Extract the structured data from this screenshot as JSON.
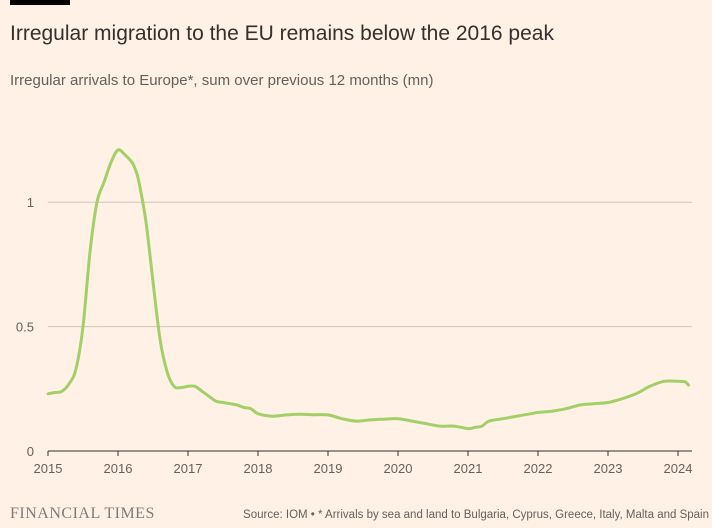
{
  "header": {
    "title": "Irregular migration to the EU remains below the 2016 peak",
    "subtitle": "Irregular arrivals to Europe*, sum over previous 12 months (mn)"
  },
  "footer": {
    "brand": "FINANCIAL TIMES",
    "source": "Source: IOM • * Arrivals by sea and land to Bulgaria, Cyprus, Greece, Italy, Malta and Spain"
  },
  "colors": {
    "background": "#FFF1E5",
    "line": "#A2CF68",
    "grid": "#CEC6B9",
    "axis": "#33302E"
  },
  "chart_data": {
    "type": "line",
    "title": "Irregular migration to the EU remains below the 2016 peak",
    "subtitle": "Irregular arrivals to Europe*, sum over previous 12 months (mn)",
    "xlabel": "",
    "ylabel": "",
    "xlim": [
      2015.0,
      2024.2
    ],
    "ylim": [
      0,
      1.25
    ],
    "grid": true,
    "x_ticks": [
      2015,
      2016,
      2017,
      2018,
      2019,
      2020,
      2021,
      2022,
      2023,
      2024
    ],
    "x_tick_labels": [
      "2015",
      "2016",
      "2017",
      "2018",
      "2019",
      "2020",
      "2021",
      "2022",
      "2023",
      "2024"
    ],
    "y_ticks": [
      0,
      0.5,
      1
    ],
    "y_tick_labels": [
      "0",
      "0.5",
      "1"
    ],
    "series": [
      {
        "x": [
          2015.0,
          2015.1,
          2015.2,
          2015.3,
          2015.4,
          2015.5,
          2015.6,
          2015.7,
          2015.8,
          2015.9,
          2016.0,
          2016.1,
          2016.2,
          2016.25,
          2016.3,
          2016.4,
          2016.5,
          2016.6,
          2016.7,
          2016.8,
          2016.9,
          2017.0,
          2017.1,
          2017.2,
          2017.3,
          2017.4,
          2017.5,
          2017.6,
          2017.7,
          2017.8,
          2017.9,
          2018.0,
          2018.2,
          2018.4,
          2018.6,
          2018.8,
          2019.0,
          2019.2,
          2019.4,
          2019.6,
          2019.8,
          2020.0,
          2020.2,
          2020.4,
          2020.6,
          2020.8,
          2021.0,
          2021.1,
          2021.2,
          2021.3,
          2021.5,
          2021.7,
          2021.9,
          2022.0,
          2022.2,
          2022.4,
          2022.6,
          2022.8,
          2023.0,
          2023.2,
          2023.4,
          2023.6,
          2023.8,
          2024.0,
          2024.1,
          2024.15
        ],
        "values": [
          0.23,
          0.235,
          0.24,
          0.27,
          0.33,
          0.5,
          0.8,
          1.0,
          1.08,
          1.16,
          1.21,
          1.19,
          1.16,
          1.13,
          1.08,
          0.92,
          0.68,
          0.45,
          0.32,
          0.26,
          0.255,
          0.26,
          0.26,
          0.24,
          0.22,
          0.2,
          0.195,
          0.19,
          0.185,
          0.175,
          0.17,
          0.15,
          0.14,
          0.145,
          0.148,
          0.146,
          0.145,
          0.13,
          0.12,
          0.125,
          0.128,
          0.13,
          0.12,
          0.11,
          0.1,
          0.1,
          0.09,
          0.095,
          0.1,
          0.12,
          0.13,
          0.14,
          0.15,
          0.155,
          0.16,
          0.17,
          0.185,
          0.19,
          0.195,
          0.21,
          0.23,
          0.26,
          0.28,
          0.28,
          0.278,
          0.265
        ]
      }
    ]
  }
}
